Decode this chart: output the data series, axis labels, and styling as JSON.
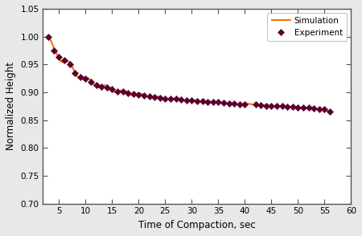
{
  "title": "",
  "xlabel": "Time of Compaction, sec",
  "ylabel": "Normalized Height",
  "xlim": [
    2,
    60
  ],
  "ylim": [
    0.7,
    1.05
  ],
  "xticks": [
    5,
    10,
    15,
    20,
    25,
    30,
    35,
    40,
    45,
    50,
    55,
    60
  ],
  "yticks": [
    0.7,
    0.75,
    0.8,
    0.85,
    0.9,
    0.95,
    1.0,
    1.05
  ],
  "sim_color": "#FF6600",
  "exp_color": "#5B0030",
  "exp_marker": "D",
  "legend_labels": [
    "Simulation",
    "Experiment"
  ],
  "fig_bg": "#E8E8E8",
  "ax_bg": "#FFFFFF",
  "spine_color": "#555555",
  "exp_x": [
    3,
    4,
    5,
    6,
    7,
    8,
    9,
    10,
    11,
    12,
    13,
    14,
    15,
    16,
    17,
    18,
    19,
    20,
    21,
    22,
    23,
    24,
    25,
    26,
    27,
    28,
    29,
    30,
    31,
    32,
    33,
    34,
    35,
    36,
    37,
    38,
    39,
    40,
    42,
    43,
    44,
    45,
    46,
    47,
    48,
    49,
    50,
    51,
    52,
    53,
    54,
    55,
    56
  ],
  "exp_y": [
    1.0,
    0.975,
    0.963,
    0.957,
    0.95,
    0.935,
    0.928,
    0.924,
    0.919,
    0.913,
    0.91,
    0.909,
    0.905,
    0.902,
    0.901,
    0.899,
    0.897,
    0.896,
    0.894,
    0.893,
    0.891,
    0.89,
    0.889,
    0.888,
    0.888,
    0.887,
    0.886,
    0.885,
    0.884,
    0.884,
    0.883,
    0.882,
    0.882,
    0.881,
    0.88,
    0.88,
    0.879,
    0.879,
    0.878,
    0.877,
    0.876,
    0.876,
    0.876,
    0.875,
    0.874,
    0.874,
    0.873,
    0.872,
    0.872,
    0.871,
    0.87,
    0.869,
    0.865
  ],
  "sim_oscillation_amplitude": 0.006,
  "sim_oscillation_freq": 1.2
}
